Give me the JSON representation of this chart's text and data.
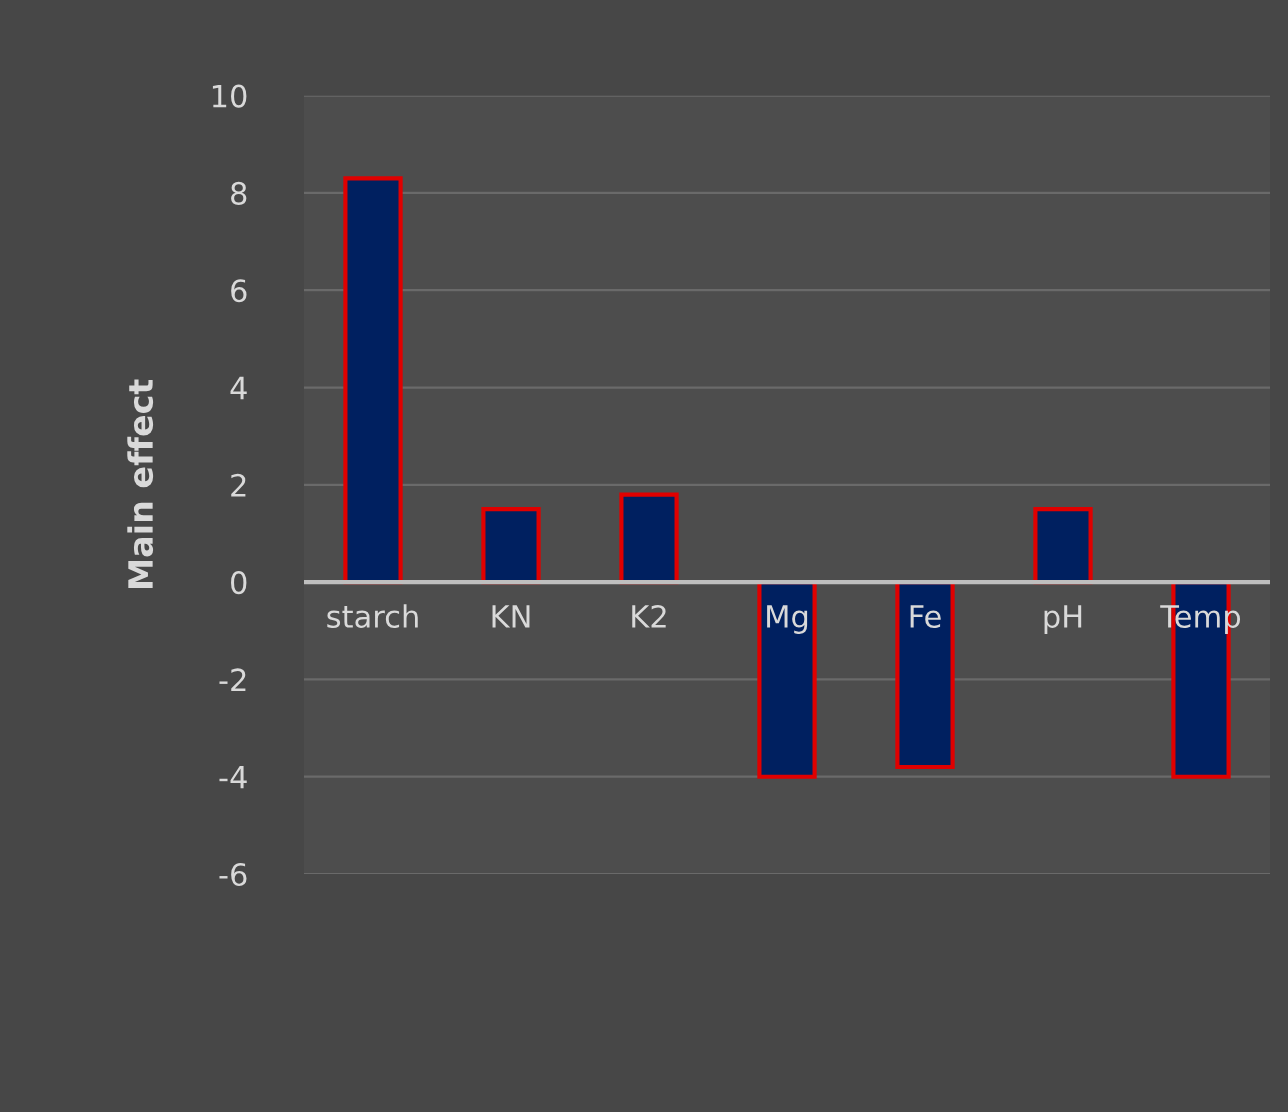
{
  "chart_data": {
    "type": "bar",
    "ylabel": "Main effect",
    "categories": [
      "starch",
      "KN",
      "K2",
      "Mg",
      "Fe",
      "pH",
      "Temp"
    ],
    "values": [
      8.3,
      1.5,
      1.8,
      -4.0,
      -3.8,
      1.5,
      -4.0
    ],
    "color": "#002060",
    "ylim": [
      -6,
      10
    ],
    "yticks": [
      -6,
      -4,
      -2,
      0,
      2,
      4,
      6,
      8,
      10
    ],
    "grid": "y",
    "legend": false
  }
}
